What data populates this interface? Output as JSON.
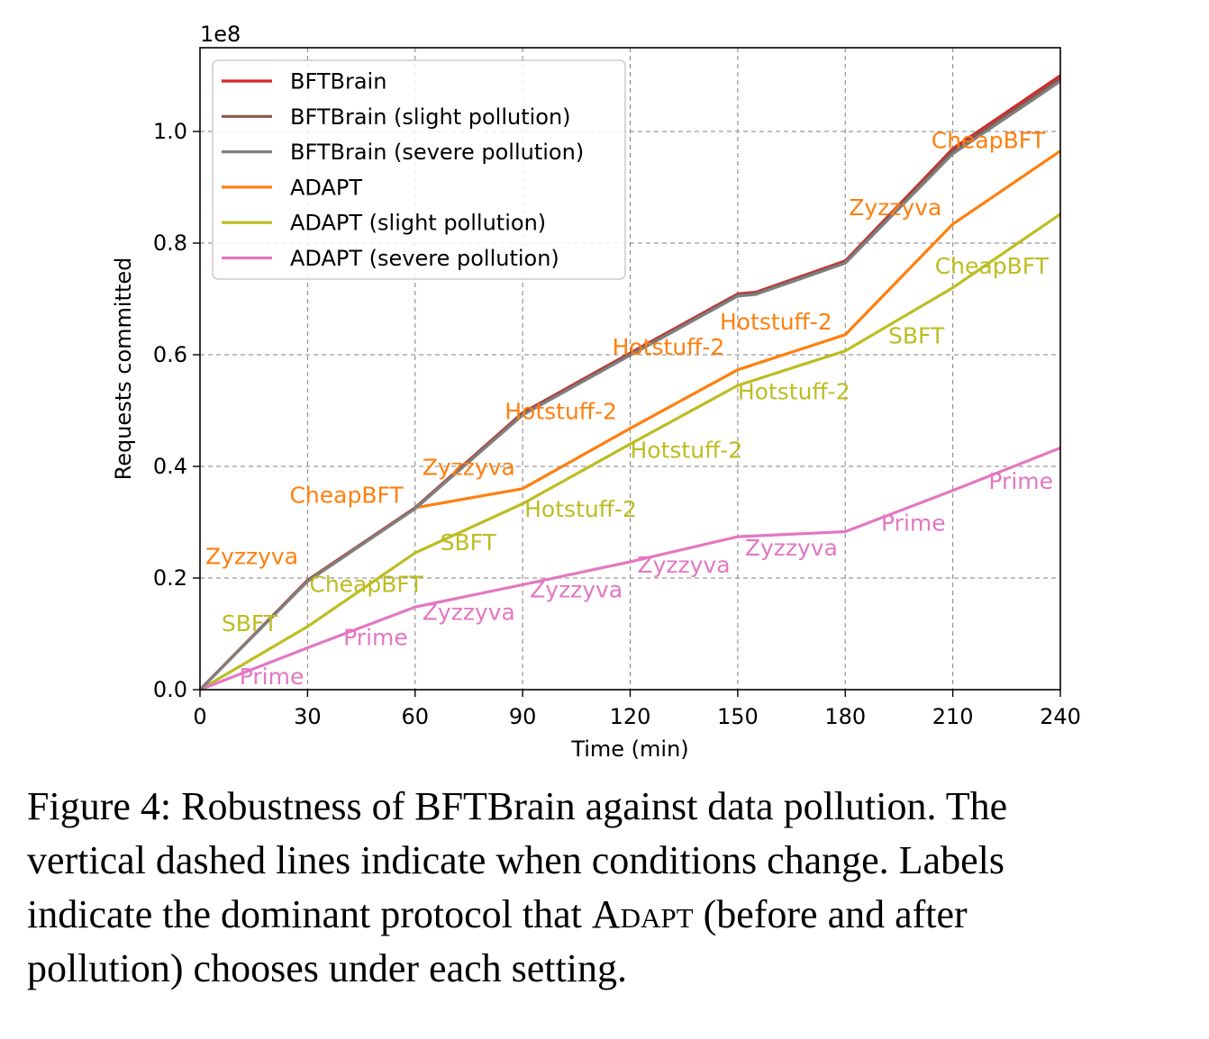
{
  "chart_data": {
    "type": "line",
    "xlabel": "Time (min)",
    "ylabel": "Requests committed",
    "y_offset_label": "1e8",
    "xlim": [
      0,
      240
    ],
    "ylim": [
      0,
      1.15
    ],
    "x_ticks": [
      0,
      30,
      60,
      90,
      120,
      150,
      180,
      210,
      240
    ],
    "y_ticks": [
      0.0,
      0.2,
      0.4,
      0.6,
      0.8,
      1.0
    ],
    "x_tick_labels": [
      "0",
      "30",
      "60",
      "90",
      "120",
      "150",
      "180",
      "210",
      "240"
    ],
    "y_tick_labels": [
      "0.0",
      "0.2",
      "0.4",
      "0.6",
      "0.8",
      "1.0"
    ],
    "grid": "dashed",
    "legend_position": "upper-left",
    "series": [
      {
        "name": "BFTBrain",
        "color": "#d62728",
        "x": [
          0,
          30,
          60,
          90,
          120,
          150,
          155,
          180,
          210,
          240
        ],
        "y": [
          0,
          0.196,
          0.326,
          0.496,
          0.603,
          0.709,
          0.712,
          0.768,
          0.969,
          1.1
        ]
      },
      {
        "name": "BFTBrain (slight pollution)",
        "color": "#8c564b",
        "x": [
          0,
          30,
          60,
          90,
          120,
          150,
          155,
          180,
          210,
          240
        ],
        "y": [
          0,
          0.195,
          0.325,
          0.494,
          0.601,
          0.707,
          0.71,
          0.766,
          0.965,
          1.095
        ]
      },
      {
        "name": "BFTBrain (severe pollution)",
        "color": "#7f7f7f",
        "x": [
          0,
          30,
          60,
          90,
          120,
          150,
          155,
          180,
          210,
          240
        ],
        "y": [
          0,
          0.194,
          0.324,
          0.492,
          0.599,
          0.705,
          0.708,
          0.764,
          0.96,
          1.09
        ]
      },
      {
        "name": "ADAPT",
        "color": "#ff7f0e",
        "x": [
          0,
          30,
          60,
          90,
          120,
          150,
          180,
          210,
          240
        ],
        "y": [
          0,
          0.196,
          0.326,
          0.36,
          0.468,
          0.573,
          0.636,
          0.834,
          0.965
        ]
      },
      {
        "name": "ADAPT (slight pollution)",
        "color": "#bcbd22",
        "x": [
          0,
          30,
          60,
          90,
          120,
          150,
          180,
          210,
          240
        ],
        "y": [
          0,
          0.113,
          0.245,
          0.333,
          0.44,
          0.545,
          0.607,
          0.72,
          0.852
        ]
      },
      {
        "name": "ADAPT (severe pollution)",
        "color": "#e377c2",
        "x": [
          0,
          30,
          60,
          90,
          120,
          150,
          180,
          210,
          240
        ],
        "y": [
          0,
          0.075,
          0.148,
          0.188,
          0.229,
          0.274,
          0.283,
          0.357,
          0.433
        ]
      }
    ],
    "annotations": [
      {
        "text": "Zyzzyva",
        "x": 1.5,
        "y": 0.225,
        "color": "#ff7f0e"
      },
      {
        "text": "CheapBFT",
        "x": 25,
        "y": 0.335,
        "color": "#ff7f0e"
      },
      {
        "text": "Zyzzyva",
        "x": 62,
        "y": 0.385,
        "color": "#ff7f0e"
      },
      {
        "text": "Hotstuff-2",
        "x": 85,
        "y": 0.485,
        "color": "#ff7f0e"
      },
      {
        "text": "Hotstuff-2",
        "x": 115,
        "y": 0.6,
        "color": "#ff7f0e"
      },
      {
        "text": "Hotstuff-2",
        "x": 145,
        "y": 0.645,
        "color": "#ff7f0e"
      },
      {
        "text": "Zyzzyva",
        "x": 181,
        "y": 0.85,
        "color": "#ff7f0e"
      },
      {
        "text": "CheapBFT",
        "x": 204,
        "y": 0.97,
        "color": "#ff7f0e"
      },
      {
        "text": "SBFT",
        "x": 6,
        "y": 0.105,
        "color": "#bcbd22"
      },
      {
        "text": "CheapBFT",
        "x": 30.5,
        "y": 0.175,
        "color": "#bcbd22"
      },
      {
        "text": "SBFT",
        "x": 67,
        "y": 0.25,
        "color": "#bcbd22"
      },
      {
        "text": "Hotstuff-2",
        "x": 90.5,
        "y": 0.31,
        "color": "#bcbd22"
      },
      {
        "text": "Hotstuff-2",
        "x": 120,
        "y": 0.415,
        "color": "#bcbd22"
      },
      {
        "text": "Hotstuff-2",
        "x": 150,
        "y": 0.52,
        "color": "#bcbd22"
      },
      {
        "text": "SBFT",
        "x": 192,
        "y": 0.62,
        "color": "#bcbd22"
      },
      {
        "text": "CheapBFT",
        "x": 205,
        "y": 0.745,
        "color": "#bcbd22"
      },
      {
        "text": "Prime",
        "x": 11,
        "y": 0.01,
        "color": "#e377c2"
      },
      {
        "text": "Prime",
        "x": 40,
        "y": 0.08,
        "color": "#e377c2"
      },
      {
        "text": "Zyzzyva",
        "x": 62,
        "y": 0.125,
        "color": "#e377c2"
      },
      {
        "text": "Zyzzyva",
        "x": 92,
        "y": 0.165,
        "color": "#e377c2"
      },
      {
        "text": "Zyzzyva",
        "x": 122,
        "y": 0.21,
        "color": "#e377c2"
      },
      {
        "text": "Zyzzyva",
        "x": 152,
        "y": 0.24,
        "color": "#e377c2"
      },
      {
        "text": "Prime",
        "x": 190,
        "y": 0.285,
        "color": "#e377c2"
      },
      {
        "text": "Prime",
        "x": 220,
        "y": 0.36,
        "color": "#e377c2"
      }
    ]
  },
  "caption": {
    "line1": "Figure 4: Robustness of BFTBrain against data pollution. The",
    "line2": "vertical dashed lines indicate when conditions change. Labels",
    "line3_before": "indicate the dominant protocol that",
    "line3_adapt": "Adapt",
    "line3_after": "(before and after",
    "line4": "pollution) chooses under each setting."
  }
}
